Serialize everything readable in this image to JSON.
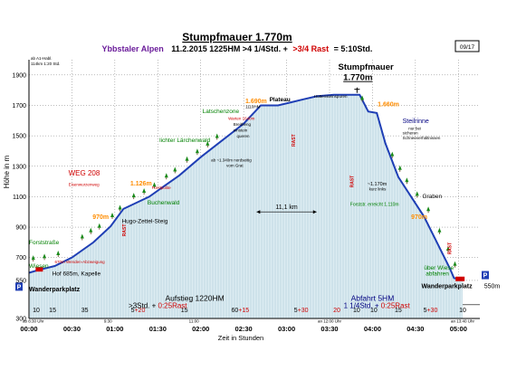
{
  "chart_data": {
    "type": "area",
    "title": "Stumpfmauer  1.770m",
    "subtitle": {
      "region": "Ybbstaler Alpen",
      "stats": "11.2.2015  1225HM   >4 1/4Std. +",
      "rest": ">3/4 Rast",
      "total": "=  5:10Std."
    },
    "page_number": "09/17",
    "map_note": [
      "ab A1-Habl.",
      "114km  1:20  Std."
    ],
    "xlabel": "Zeit in Stunden",
    "ylabel": "Höhe in m",
    "ylim": [
      300,
      2000
    ],
    "xlim": [
      0,
      5.25
    ],
    "y_ticks": [
      {
        "v": 300,
        "label": "300"
      },
      {
        "v": 550,
        "label": "550"
      },
      {
        "v": 700,
        "label": "700"
      },
      {
        "v": 900,
        "label": "900"
      },
      {
        "v": 1100,
        "label": "1100"
      },
      {
        "v": 1300,
        "label": "1300"
      },
      {
        "v": 1500,
        "label": "1500"
      },
      {
        "v": 1700,
        "label": "1700"
      },
      {
        "v": 1900,
        "label": "1900"
      }
    ],
    "x_ticks": [
      {
        "v": 0,
        "label": "00:00"
      },
      {
        "v": 0.5,
        "label": "00:30"
      },
      {
        "v": 1,
        "label": "01:00"
      },
      {
        "v": 1.5,
        "label": "01:30"
      },
      {
        "v": 2,
        "label": "02:00"
      },
      {
        "v": 2.5,
        "label": "02:30"
      },
      {
        "v": 3,
        "label": "03:00"
      },
      {
        "v": 3.5,
        "label": "03:30"
      },
      {
        "v": 4,
        "label": "04:00"
      },
      {
        "v": 4.5,
        "label": "04:30"
      },
      {
        "v": 5,
        "label": "05:00"
      }
    ],
    "small_time_notes": [
      {
        "x": 0.05,
        "label": "ab 8:30 Uhr"
      },
      {
        "x": 0.92,
        "label": "9:30"
      },
      {
        "x": 1.92,
        "label": "11:00"
      },
      {
        "x": 3.5,
        "label": "an 12:00 Uhr"
      },
      {
        "x": 5.05,
        "label": "an 13:40 Uhr"
      }
    ],
    "profile": {
      "x": [
        0,
        0.12,
        0.3,
        0.5,
        0.75,
        0.95,
        1.1,
        1.25,
        1.4,
        1.55,
        1.75,
        2.0,
        2.25,
        2.5,
        2.7,
        2.9,
        3.05,
        3.2,
        3.35,
        3.55,
        3.7,
        3.85,
        3.95,
        4.05,
        4.15,
        4.3,
        4.45,
        4.6,
        4.75,
        4.9,
        4.95,
        5.05
      ],
      "y": [
        600,
        620,
        645,
        700,
        800,
        905,
        1020,
        1060,
        1100,
        1160,
        1240,
        1360,
        1470,
        1580,
        1700,
        1700,
        1720,
        1740,
        1760,
        1770,
        1770,
        1770,
        1660,
        1650,
        1450,
        1230,
        1100,
        970,
        800,
        630,
        565,
        555
      ]
    },
    "segment_minutes": [
      {
        "x0": 0,
        "x1": 0.17,
        "label": "10",
        "color": "#000000"
      },
      {
        "x0": 0.17,
        "x1": 0.38,
        "label": "15",
        "color": "#000000"
      },
      {
        "x0": 0.38,
        "x1": 0.92,
        "label": "35",
        "color": "#000000"
      },
      {
        "x0": 0.92,
        "x1": 1.62,
        "label": "5+20",
        "color": "#000000",
        "red": "+20"
      },
      {
        "x0": 1.62,
        "x1": 2.0,
        "label": "15",
        "color": "#000000"
      },
      {
        "x0": 2.0,
        "x1": 2.92,
        "label": "60+15",
        "color": "#000000",
        "red": "+15"
      },
      {
        "x0": 2.92,
        "x1": 3.42,
        "label": "5+30",
        "color": "#000000",
        "red": "+30"
      },
      {
        "x0": 3.42,
        "x1": 3.75,
        "label": "20",
        "color": "#d00000"
      },
      {
        "x0": 3.75,
        "x1": 3.88,
        "label": "10",
        "color": "#000000"
      },
      {
        "x0": 3.88,
        "x1": 4.15,
        "label": "10",
        "color": "#000000"
      },
      {
        "x0": 4.15,
        "x1": 4.45,
        "label": "15",
        "color": "#000000"
      },
      {
        "x0": 4.45,
        "x1": 4.9,
        "label": "5+30",
        "color": "#000000",
        "red": "+30"
      },
      {
        "x0": 4.9,
        "x1": 5.2,
        "label": "10",
        "color": "#000000"
      }
    ],
    "summary": [
      {
        "x": 1.93,
        "y": 417,
        "text": "Aufstieg 1220HM",
        "color": "#000000",
        "size": 8.5
      },
      {
        "x": 1.5,
        "y": 368,
        "text": ">3Std. +",
        "color": "#000000",
        "size": 8,
        "extra": "0:25Rast",
        "extra_color": "#d00000"
      },
      {
        "x": 4.0,
        "y": 417,
        "text": "Abfahrt  5HM",
        "color": "#000080",
        "size": 8.5
      },
      {
        "x": 4.05,
        "y": 368,
        "text": "1 1/4Std. +",
        "color": "#000080",
        "size": 8,
        "extra": "0:25Rast",
        "extra_color": "#d00000"
      }
    ],
    "distance": {
      "x0": 2.65,
      "x1": 3.35,
      "y": 1000,
      "label": "11,1 km"
    },
    "rast_marks": [
      {
        "x": 1.13,
        "y": 880,
        "label": "RAST"
      },
      {
        "x": 3.1,
        "y": 1470,
        "label": "RAST"
      },
      {
        "x": 3.78,
        "y": 1200,
        "label": "RAST"
      },
      {
        "x": 4.92,
        "y": 760,
        "label": "RAST"
      }
    ],
    "place_labels": [
      {
        "x": 0.0,
        "y": 787,
        "text": "Forststraße",
        "color": "#008000",
        "size": 6.5
      },
      {
        "x": 0.0,
        "y": 632,
        "text": "Wiesen",
        "color": "#008000",
        "size": 6.5
      },
      {
        "x": 0.27,
        "y": 583,
        "text": "Hof 685m, Kapelle",
        "color": "#000000",
        "size": 6.5
      },
      {
        "x": 0.0,
        "y": 478,
        "text": "Wanderparkplatz",
        "color": "#000000",
        "size": 7,
        "bold": true
      },
      {
        "x": 0.3,
        "y": 662,
        "text": "670m Wenden-Abzweigung",
        "color": "#d00000",
        "size": 4.5
      },
      {
        "x": 0.46,
        "y": 1240,
        "text": "WEG 208",
        "color": "#d00000",
        "size": 8
      },
      {
        "x": 0.46,
        "y": 1170,
        "text": "Eisenwurzenweg",
        "color": "#d00000",
        "size": 4.5
      },
      {
        "x": 0.74,
        "y": 955,
        "text": "970m",
        "color": "#ff8c00",
        "size": 7,
        "bold": true
      },
      {
        "x": 1.08,
        "y": 927,
        "text": "Hugo-Zettel-Steig",
        "color": "#000000",
        "size": 6.5
      },
      {
        "x": 1.18,
        "y": 1175,
        "text": "1.126m",
        "color": "#ff8c00",
        "size": 7,
        "bold": true
      },
      {
        "x": 1.43,
        "y": 1150,
        "text": "Forstpolite",
        "color": "#d00000",
        "size": 4.5
      },
      {
        "x": 1.38,
        "y": 1050,
        "text": "Buchenwald",
        "color": "#008000",
        "size": 6.5
      },
      {
        "x": 1.52,
        "y": 1460,
        "text": "lichter Lärchenwald",
        "color": "#008000",
        "size": 6.5
      },
      {
        "x": 2.12,
        "y": 1330,
        "text": "ab ~1.340m nordseitig",
        "color": "#000000",
        "size": 4.5
      },
      {
        "x": 2.3,
        "y": 1295,
        "text": "vom Grat",
        "color": "#000000",
        "size": 4.5
      },
      {
        "x": 2.02,
        "y": 1650,
        "text": "Latschenzone",
        "color": "#008000",
        "size": 6.5
      },
      {
        "x": 2.32,
        "y": 1605,
        "text": "Warten 1640m",
        "color": "#d00000",
        "size": 4.5
      },
      {
        "x": 2.38,
        "y": 1565,
        "text": "Breitheng",
        "color": "#000000",
        "size": 4.5
      },
      {
        "x": 2.38,
        "y": 1527,
        "text": "einstein",
        "color": "#000000",
        "size": 4.5
      },
      {
        "x": 2.42,
        "y": 1490,
        "text": "queren",
        "color": "#000000",
        "size": 4.5
      },
      {
        "x": 2.52,
        "y": 1716,
        "text": "1.690m",
        "color": "#ff8c00",
        "size": 7,
        "bold": true
      },
      {
        "x": 2.52,
        "y": 1682,
        "text": "1110HM",
        "color": "#000000",
        "size": 4.5
      },
      {
        "x": 2.8,
        "y": 1726,
        "text": "Plateau",
        "color": "#000000",
        "size": 6.5,
        "bold": true
      },
      {
        "x": 3.32,
        "y": 1750,
        "text": "Hüttensteinspuren",
        "color": "#000000",
        "size": 4.5
      },
      {
        "x": 3.6,
        "y": 1935,
        "text": "Stumpfmauer",
        "color": "#000000",
        "size": 9.5,
        "bold": true
      },
      {
        "x": 3.66,
        "y": 1865,
        "text": "1.770m",
        "color": "#000000",
        "size": 9.5,
        "bold": true,
        "underline": true
      },
      {
        "x": 4.06,
        "y": 1695,
        "text": "1.660m",
        "color": "#ff8c00",
        "size": 7,
        "bold": true
      },
      {
        "x": 4.35,
        "y": 1585,
        "text": "Steilrinne",
        "color": "#000080",
        "size": 7
      },
      {
        "x": 4.42,
        "y": 1540,
        "text": "nur bei",
        "color": "#000000",
        "size": 4.5
      },
      {
        "x": 4.35,
        "y": 1510,
        "text": "sicheren",
        "color": "#000000",
        "size": 4.5
      },
      {
        "x": 4.35,
        "y": 1478,
        "text": "Schneeverhältnissen",
        "color": "#000000",
        "size": 4.5
      },
      {
        "x": 3.94,
        "y": 1175,
        "text": "~1.170m",
        "color": "#000000",
        "size": 5.5
      },
      {
        "x": 3.96,
        "y": 1140,
        "text": "kurz links",
        "color": "#000000",
        "size": 4.5
      },
      {
        "x": 3.74,
        "y": 1040,
        "text": "Forststr. erreicht 1.110m",
        "color": "#008000",
        "size": 5
      },
      {
        "x": 4.58,
        "y": 1090,
        "text": "Graben",
        "color": "#000000",
        "size": 6.5
      },
      {
        "x": 4.45,
        "y": 955,
        "text": "970m",
        "color": "#ff8c00",
        "size": 7,
        "bold": true
      },
      {
        "x": 4.6,
        "y": 620,
        "text": "über Wiese",
        "color": "#008000",
        "size": 6.5
      },
      {
        "x": 4.62,
        "y": 582,
        "text": "abfahren",
        "color": "#008000",
        "size": 6.5
      },
      {
        "x": 4.57,
        "y": 498,
        "text": "Wanderparkplatz",
        "color": "#000000",
        "size": 7,
        "bold": true
      },
      {
        "x": 5.3,
        "y": 498,
        "text": "550m",
        "color": "#000000",
        "size": 7
      }
    ],
    "trees": [
      {
        "x": 0.62,
        "y": 820
      },
      {
        "x": 0.72,
        "y": 860
      },
      {
        "x": 0.82,
        "y": 890
      },
      {
        "x": 0.97,
        "y": 960
      },
      {
        "x": 1.06,
        "y": 1010
      },
      {
        "x": 1.22,
        "y": 1090
      },
      {
        "x": 1.34,
        "y": 1120
      },
      {
        "x": 1.46,
        "y": 1160
      },
      {
        "x": 1.6,
        "y": 1220
      },
      {
        "x": 1.7,
        "y": 1260
      },
      {
        "x": 1.84,
        "y": 1330
      },
      {
        "x": 1.96,
        "y": 1380
      },
      {
        "x": 2.08,
        "y": 1430
      },
      {
        "x": 2.19,
        "y": 1480
      },
      {
        "x": 3.88,
        "y": 1730
      },
      {
        "x": 4.23,
        "y": 1360
      },
      {
        "x": 4.32,
        "y": 1270
      },
      {
        "x": 4.4,
        "y": 1190
      },
      {
        "x": 4.52,
        "y": 1100
      },
      {
        "x": 4.65,
        "y": 1000
      },
      {
        "x": 4.78,
        "y": 860
      },
      {
        "x": 4.88,
        "y": 740
      },
      {
        "x": 4.96,
        "y": 640
      },
      {
        "x": 0.05,
        "y": 680
      },
      {
        "x": 0.18,
        "y": 690
      },
      {
        "x": 0.34,
        "y": 710
      }
    ],
    "parking_labels": [
      "P",
      "P"
    ],
    "colors": {
      "fill": "#dcecf2",
      "stripe": "#b8d3de",
      "line": "#1f3fb5",
      "grid": "#7a7a7a",
      "title": "#000000",
      "subtitle": "#6a1b9a",
      "rest": "#d00000"
    }
  }
}
